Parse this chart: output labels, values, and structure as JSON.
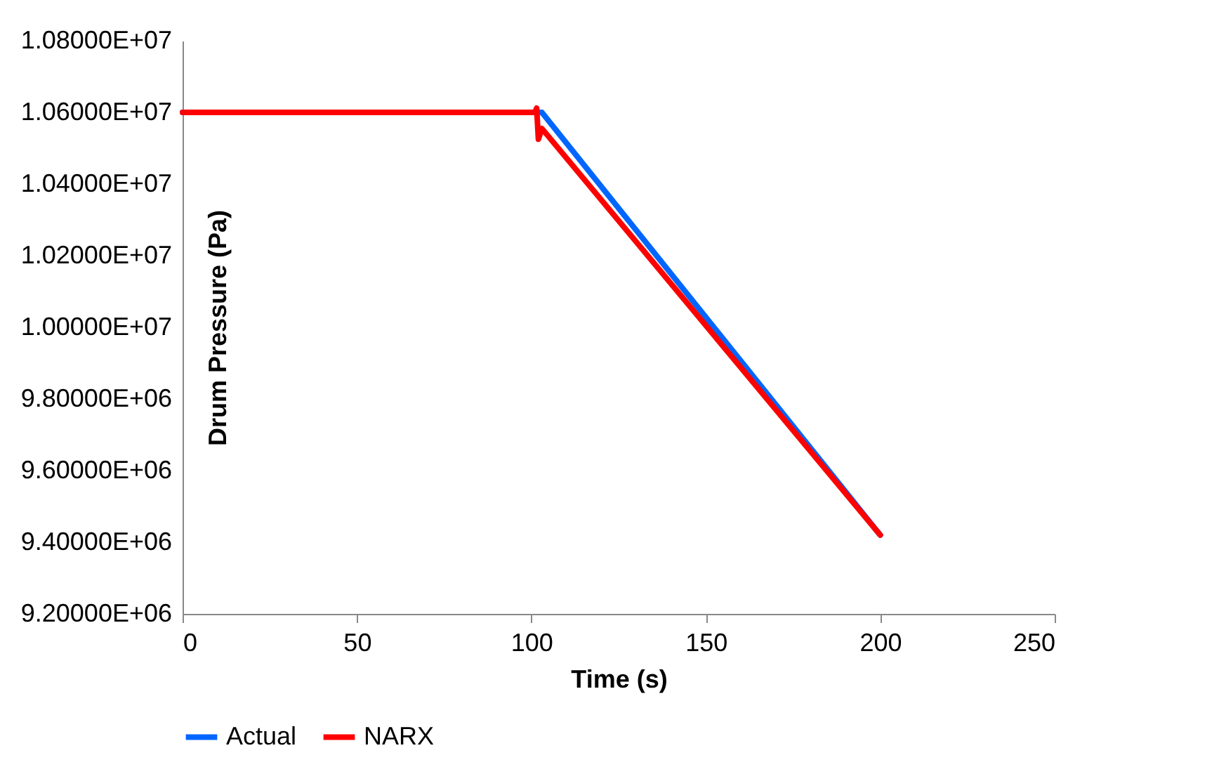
{
  "chart_data": {
    "type": "line",
    "xlabel": "Time (s)",
    "ylabel": "Drum Pressure (Pa)",
    "xlim": [
      0,
      250
    ],
    "xticks": [
      0,
      50,
      100,
      150,
      200,
      250
    ],
    "ylim": [
      9200000,
      10800000
    ],
    "yticks": [
      {
        "value": 9200000,
        "label": "9.20000E+06"
      },
      {
        "value": 9400000,
        "label": "9.40000E+06"
      },
      {
        "value": 9600000,
        "label": "9.60000E+06"
      },
      {
        "value": 9800000,
        "label": "9.80000E+06"
      },
      {
        "value": 10000000,
        "label": "1.00000E+07"
      },
      {
        "value": 10200000,
        "label": "1.02000E+07"
      },
      {
        "value": 10400000,
        "label": "1.04000E+07"
      },
      {
        "value": 10600000,
        "label": "1.06000E+07"
      },
      {
        "value": 10800000,
        "label": "1.08000E+07"
      }
    ],
    "grid": false,
    "legend": "bottom",
    "series": [
      {
        "name": "Actual",
        "color": "#0066ff",
        "x": [
          0,
          103,
          200
        ],
        "values": [
          10600000,
          10600000,
          9420000
        ]
      },
      {
        "name": "NARX",
        "color": "#ff0000",
        "x": [
          0,
          101,
          101.5,
          102,
          103,
          200
        ],
        "values": [
          10600000,
          10600000,
          10612000,
          10525000,
          10555000,
          9420000
        ]
      }
    ]
  }
}
